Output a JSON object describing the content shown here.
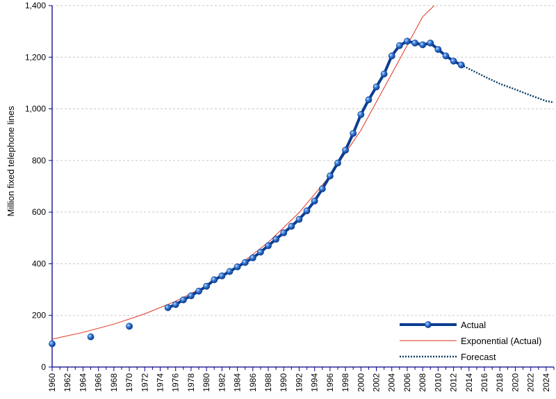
{
  "chart_data": {
    "type": "line",
    "ylabel": "Million fixed telephone lines",
    "xlabel": "",
    "title": "",
    "xlim": [
      1960,
      2025
    ],
    "ylim": [
      0,
      1400
    ],
    "y_ticks": [
      0,
      200,
      400,
      600,
      800,
      1000,
      1200,
      1400
    ],
    "y_tick_labels": [
      "0",
      "200",
      "400",
      "600",
      "800",
      "1,000",
      "1,200",
      "1,400"
    ],
    "x_ticks": [
      1960,
      1962,
      1964,
      1966,
      1968,
      1970,
      1972,
      1974,
      1976,
      1978,
      1980,
      1982,
      1984,
      1986,
      1988,
      1990,
      1992,
      1994,
      1996,
      1998,
      2000,
      2002,
      2004,
      2006,
      2008,
      2010,
      2012,
      2014,
      2016,
      2018,
      2020,
      2022,
      2024
    ],
    "grid": true,
    "legend_position": "bottom-right",
    "colors": {
      "actual": "#0b3d91",
      "marker": "#3a7bd5",
      "exponential": "#e0301e",
      "forecast": "#0b3d62",
      "grid": "#c8c8c8",
      "axis": "#00008b"
    },
    "series": [
      {
        "name": "Actual",
        "style": "thick line with markers",
        "x": [
          1960,
          1965,
          1970,
          1975,
          1976,
          1977,
          1978,
          1979,
          1980,
          1981,
          1982,
          1983,
          1984,
          1985,
          1986,
          1987,
          1988,
          1989,
          1990,
          1991,
          1992,
          1993,
          1994,
          1995,
          1996,
          1997,
          1998,
          1999,
          2000,
          2001,
          2002,
          2003,
          2004,
          2005,
          2006,
          2007,
          2008,
          2009,
          2010,
          2011,
          2012,
          2013
        ],
        "y": [
          90,
          117,
          158,
          230,
          242,
          260,
          276,
          294,
          313,
          338,
          353,
          370,
          388,
          405,
          423,
          445,
          470,
          495,
          520,
          545,
          572,
          605,
          643,
          690,
          740,
          790,
          840,
          905,
          978,
          1035,
          1085,
          1135,
          1205,
          1245,
          1262,
          1255,
          1248,
          1255,
          1230,
          1205,
          1185,
          1170
        ]
      },
      {
        "name": "Exponential (Actual)",
        "style": "thin line",
        "x": [
          1960,
          1964,
          1968,
          1972,
          1976,
          1980,
          1984,
          1988,
          1992,
          1996,
          2000,
          2004,
          2008,
          2009.5
        ],
        "y": [
          108,
          134,
          166,
          206,
          255,
          315,
          390,
          483,
          598,
          741,
          917,
          1136,
          1357,
          1400
        ]
      },
      {
        "name": "Forecast",
        "style": "dotted line",
        "x": [
          2013,
          2014,
          2016,
          2018,
          2020,
          2022,
          2024,
          2025
        ],
        "y": [
          1170,
          1155,
          1125,
          1097,
          1075,
          1052,
          1030,
          1025
        ]
      }
    ]
  }
}
